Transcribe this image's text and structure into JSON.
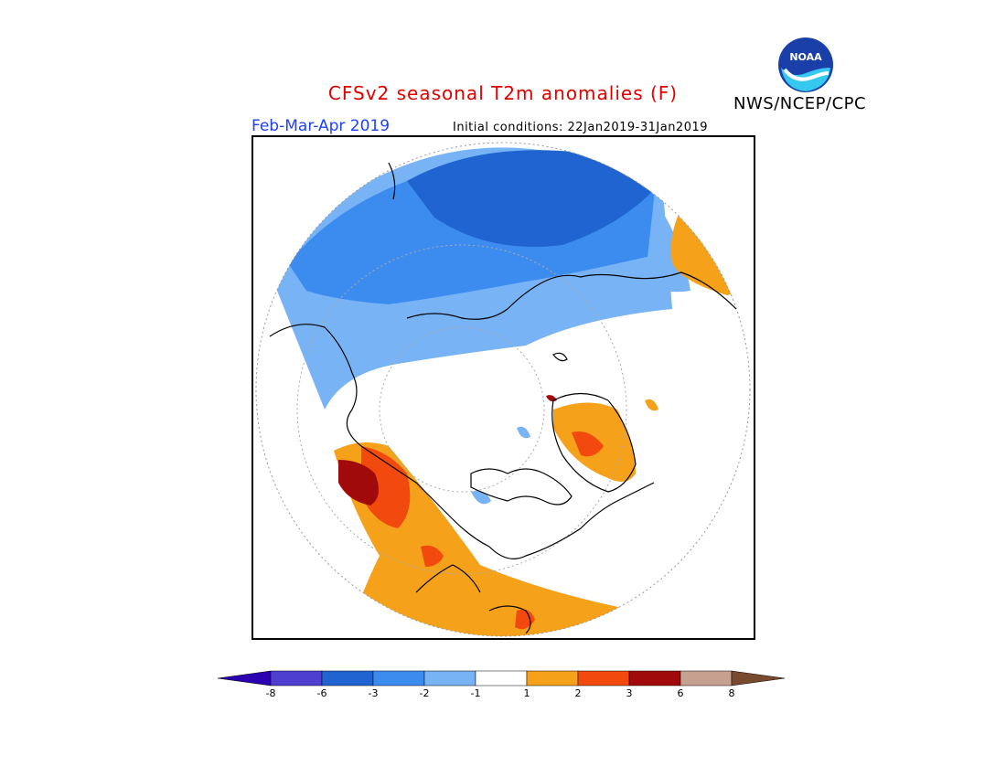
{
  "title": "CFSv2 seasonal T2m anomalies (F)",
  "agency": "NWS/NCEP/CPC",
  "logo_text": "NOAA",
  "season": "Feb-Mar-Apr 2019",
  "initial_conditions": "Initial conditions: 22Jan2019-31Jan2019",
  "colorbar": {
    "colors": [
      "#2a00b0",
      "#4e3fd0",
      "#1f64d0",
      "#3c8cef",
      "#78b4f5",
      "#ffffff",
      "#f5a11a",
      "#f24a0e",
      "#a00a0a",
      "#c8a090",
      "#7a4a30"
    ],
    "ticks": [
      "-8",
      "-6",
      "-3",
      "-2",
      "-1",
      "1",
      "2",
      "3",
      "6",
      "8"
    ]
  }
}
